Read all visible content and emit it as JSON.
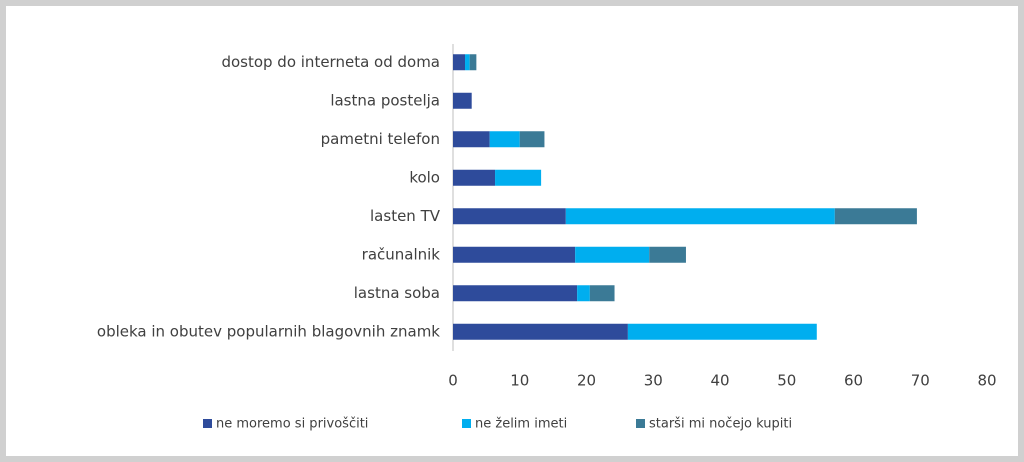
{
  "chart_data": {
    "type": "stacked-bar-horizontal",
    "categories": [
      "dostop do interneta od doma",
      "lastna postelja",
      "pametni telefon",
      "kolo",
      "lasten TV",
      "računalnik",
      "lastna soba",
      "obleka in obutev popularnih blagovnih znamk"
    ],
    "series": [
      {
        "name": "ne moremo si privoščiti",
        "color": "#2e4b9b",
        "values": [
          1.8,
          2.8,
          5.5,
          6.3,
          16.9,
          18.3,
          18.6,
          26.2
        ]
      },
      {
        "name": "ne želim imeti",
        "color": "#00aeef",
        "values": [
          0.7,
          0,
          4.5,
          6.9,
          40.3,
          11.1,
          1.9,
          28.3
        ]
      },
      {
        "name": "starši mi nočejo kupiti",
        "color": "#3b7a96",
        "values": [
          1.0,
          0,
          3.7,
          0,
          12.3,
          5.5,
          3.7,
          0
        ]
      }
    ],
    "xlim": [
      0,
      80
    ],
    "xticks": [
      0,
      10,
      20,
      30,
      40,
      50,
      60,
      70,
      80
    ],
    "grid": false
  }
}
